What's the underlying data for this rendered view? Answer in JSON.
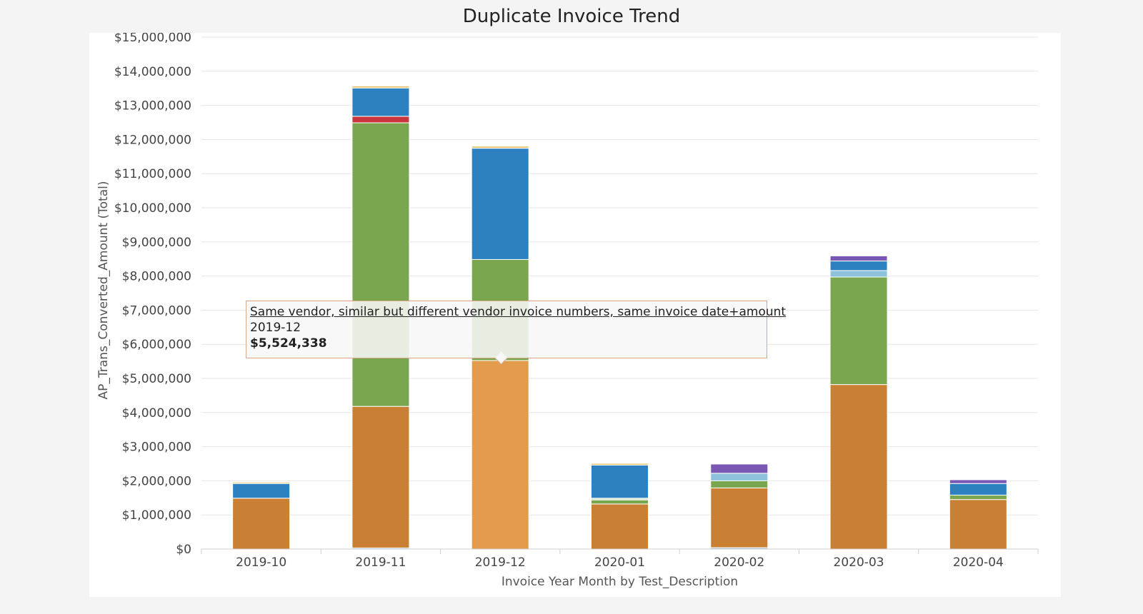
{
  "chart_data": {
    "type": "bar",
    "stacked": true,
    "title": "Duplicate Invoice Trend",
    "xlabel": "Invoice Year Month by Test_Description",
    "ylabel": "AP_Trans_Converted_Amount (Total)",
    "ylim": [
      0,
      15000000
    ],
    "yticks": [
      0,
      1000000,
      2000000,
      3000000,
      4000000,
      5000000,
      6000000,
      7000000,
      8000000,
      9000000,
      10000000,
      11000000,
      12000000,
      13000000,
      14000000,
      15000000
    ],
    "ytick_labels": [
      "$0",
      "$1,000,000",
      "$2,000,000",
      "$3,000,000",
      "$4,000,000",
      "$5,000,000",
      "$6,000,000",
      "$7,000,000",
      "$8,000,000",
      "$9,000,000",
      "$10,000,000",
      "$11,000,000",
      "$12,000,000",
      "$13,000,000",
      "$14,000,000",
      "$15,000,000"
    ],
    "grid": true,
    "categories": [
      "2019-10",
      "2019-11",
      "2019-12",
      "2020-01",
      "2020-02",
      "2020-03",
      "2020-04"
    ],
    "series": [
      {
        "color": "#a3bdd1",
        "values": [
          0,
          30000,
          0,
          0,
          40000,
          0,
          0
        ]
      },
      {
        "color": "#c98035",
        "values": [
          1490000,
          4150000,
          0,
          1320000,
          1750000,
          4820000,
          1450000
        ]
      },
      {
        "color": "#e39b4d",
        "values": [
          0,
          0,
          5524338,
          0,
          0,
          0,
          0
        ]
      },
      {
        "color": "#79a64f",
        "values": [
          0,
          8310000,
          2960000,
          120000,
          210000,
          3150000,
          130000
        ]
      },
      {
        "color": "#cfe0c7",
        "values": [
          0,
          0,
          0,
          50000,
          0,
          0,
          0
        ]
      },
      {
        "color": "#c9343e",
        "values": [
          0,
          190000,
          0,
          0,
          0,
          0,
          0
        ]
      },
      {
        "color": "#8ec1db",
        "values": [
          0,
          0,
          0,
          0,
          220000,
          190000,
          0
        ]
      },
      {
        "color": "#2d81c0",
        "values": [
          430000,
          830000,
          3260000,
          970000,
          0,
          280000,
          340000
        ]
      },
      {
        "color": "#7a57b2",
        "values": [
          0,
          0,
          0,
          0,
          270000,
          150000,
          110000
        ]
      },
      {
        "color": "#e4c46a",
        "values": [
          40000,
          60000,
          60000,
          50000,
          0,
          0,
          0
        ]
      }
    ]
  },
  "tooltip": {
    "series": "Same vendor, similar but different vendor invoice numbers, same invoice date+amount",
    "category": "2019-12",
    "value": "$5,524,338"
  }
}
